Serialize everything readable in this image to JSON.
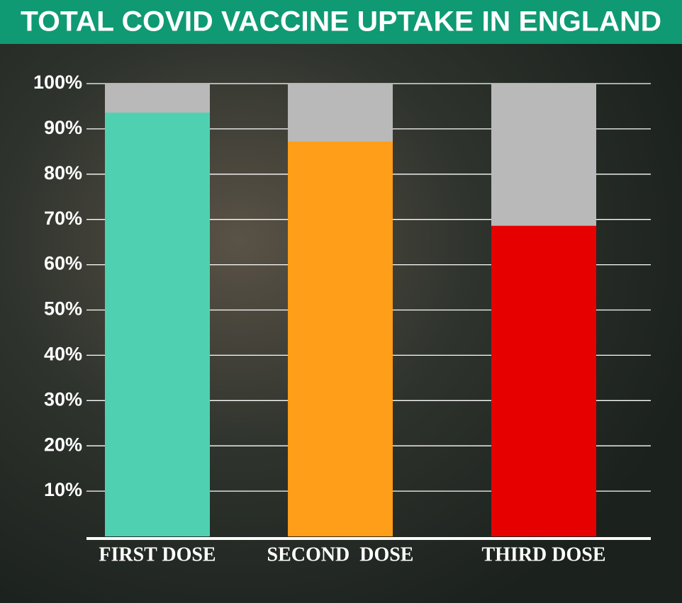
{
  "chart_data": {
    "type": "bar",
    "title": "TOTAL COVID VACCINE UPTAKE IN ENGLAND",
    "categories": [
      "FIRST DOSE",
      "SECOND  DOSE",
      "THIRD DOSE"
    ],
    "values": [
      93.6,
      87.2,
      68.6
    ],
    "colors": [
      "#4fd1b1",
      "#ff9e18",
      "#e60000"
    ],
    "track_color": "#b9b9b9",
    "ylim": [
      0,
      100
    ],
    "yticks": [
      {
        "value": 10,
        "label": "10%"
      },
      {
        "value": 20,
        "label": "20%"
      },
      {
        "value": 30,
        "label": "30%"
      },
      {
        "value": 40,
        "label": "40%"
      },
      {
        "value": 50,
        "label": "50%"
      },
      {
        "value": 60,
        "label": "60%"
      },
      {
        "value": 70,
        "label": "70%"
      },
      {
        "value": 80,
        "label": "80%"
      },
      {
        "value": 90,
        "label": "90%"
      },
      {
        "value": 100,
        "label": "100%"
      }
    ],
    "grid": true
  }
}
